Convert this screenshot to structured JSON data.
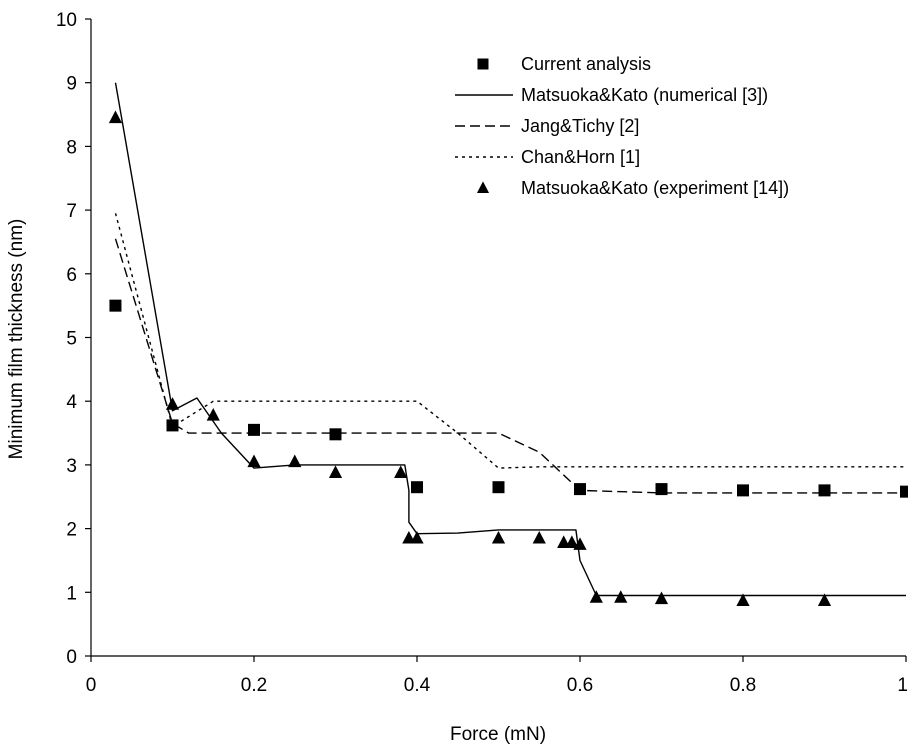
{
  "chart_data": {
    "type": "line",
    "title": "",
    "xlabel": "Force (mN)",
    "ylabel": "Minimum film thickness (nm)",
    "xlim": [
      0,
      1
    ],
    "ylim": [
      0,
      10
    ],
    "x_ticks": [
      "0",
      "0.2",
      "0.4",
      "0.6",
      "0.8",
      "1"
    ],
    "y_ticks": [
      "0",
      "1",
      "2",
      "3",
      "4",
      "5",
      "6",
      "7",
      "8",
      "9",
      "10"
    ],
    "grid": false,
    "legend_position": "top-right",
    "series": [
      {
        "name": "Current analysis",
        "style": "square-markers",
        "color": "#000000",
        "points": [
          [
            0.03,
            5.5
          ],
          [
            0.1,
            3.62
          ],
          [
            0.2,
            3.55
          ],
          [
            0.3,
            3.48
          ],
          [
            0.4,
            2.65
          ],
          [
            0.5,
            2.65
          ],
          [
            0.6,
            2.62
          ],
          [
            0.7,
            2.62
          ],
          [
            0.8,
            2.6
          ],
          [
            0.9,
            2.6
          ],
          [
            1.0,
            2.58
          ]
        ]
      },
      {
        "name": "Matsuoka&Kato (numerical [3])",
        "style": "solid",
        "color": "#000000",
        "points": [
          [
            0.03,
            9.0
          ],
          [
            0.1,
            3.85
          ],
          [
            0.13,
            4.05
          ],
          [
            0.16,
            3.5
          ],
          [
            0.2,
            2.95
          ],
          [
            0.22,
            2.97
          ],
          [
            0.25,
            3.0
          ],
          [
            0.3,
            3.0
          ],
          [
            0.385,
            3.0
          ],
          [
            0.39,
            2.6
          ],
          [
            0.39,
            2.1
          ],
          [
            0.4,
            1.92
          ],
          [
            0.45,
            1.93
          ],
          [
            0.5,
            1.98
          ],
          [
            0.595,
            1.98
          ],
          [
            0.6,
            1.5
          ],
          [
            0.62,
            0.95
          ],
          [
            0.65,
            0.95
          ],
          [
            0.7,
            0.95
          ],
          [
            0.9,
            0.95
          ],
          [
            1.0,
            0.95
          ]
        ]
      },
      {
        "name": "Jang&Tichy [2]",
        "style": "dashed",
        "color": "#000000",
        "points": [
          [
            0.03,
            6.55
          ],
          [
            0.1,
            3.65
          ],
          [
            0.12,
            3.5
          ],
          [
            0.3,
            3.5
          ],
          [
            0.4,
            3.5
          ],
          [
            0.5,
            3.5
          ],
          [
            0.55,
            3.2
          ],
          [
            0.6,
            2.6
          ],
          [
            0.7,
            2.56
          ],
          [
            0.9,
            2.56
          ],
          [
            1.0,
            2.56
          ]
        ]
      },
      {
        "name": "Chan&Horn [1]",
        "style": "dotted",
        "color": "#000000",
        "points": [
          [
            0.03,
            6.95
          ],
          [
            0.1,
            3.6
          ],
          [
            0.15,
            4.0
          ],
          [
            0.3,
            4.0
          ],
          [
            0.4,
            4.0
          ],
          [
            0.45,
            3.5
          ],
          [
            0.5,
            2.95
          ],
          [
            0.55,
            2.97
          ],
          [
            0.6,
            2.97
          ],
          [
            0.8,
            2.97
          ],
          [
            1.0,
            2.97
          ]
        ]
      },
      {
        "name": "Matsuoka&Kato (experiment [14])",
        "style": "triangle-markers",
        "color": "#000000",
        "points": [
          [
            0.03,
            8.45
          ],
          [
            0.1,
            3.95
          ],
          [
            0.15,
            3.78
          ],
          [
            0.2,
            3.05
          ],
          [
            0.25,
            3.05
          ],
          [
            0.3,
            2.88
          ],
          [
            0.38,
            2.88
          ],
          [
            0.39,
            1.85
          ],
          [
            0.4,
            1.85
          ],
          [
            0.5,
            1.85
          ],
          [
            0.55,
            1.85
          ],
          [
            0.58,
            1.78
          ],
          [
            0.59,
            1.78
          ],
          [
            0.6,
            1.75
          ],
          [
            0.62,
            0.92
          ],
          [
            0.65,
            0.92
          ],
          [
            0.7,
            0.9
          ],
          [
            0.8,
            0.87
          ],
          [
            0.9,
            0.87
          ]
        ]
      }
    ]
  }
}
